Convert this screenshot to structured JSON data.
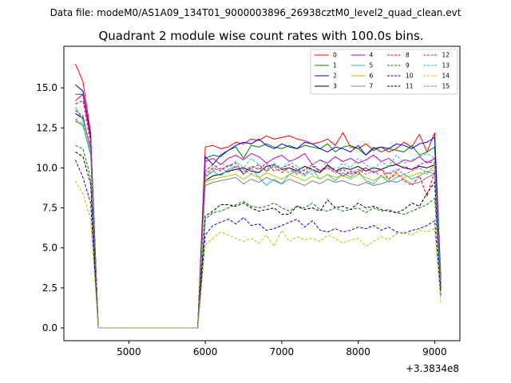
{
  "header": {
    "suptitle": "Data file: modeM0/AS1A09_134T01_9000003896_26938cztM0_level2_quad_clean.evt"
  },
  "chart_data": {
    "type": "line",
    "title": "Quadrant 2 module wise count rates with 100.0s bins.",
    "xlabel": "",
    "ylabel": "",
    "x_offset_label": "+3.3834e8",
    "xlim": [
      4150,
      9330
    ],
    "ylim": [
      -0.8,
      17.6
    ],
    "xticks": [
      5000,
      6000,
      7000,
      8000,
      9000
    ],
    "yticks": [
      0.0,
      2.5,
      5.0,
      7.5,
      10.0,
      12.5,
      15.0
    ],
    "xtick_labels": [
      "5000",
      "6000",
      "7000",
      "8000",
      "9000"
    ],
    "ytick_labels": [
      "0.0",
      "2.5",
      "5.0",
      "7.5",
      "10.0",
      "12.5",
      "15.0"
    ],
    "grid": false,
    "legend": {
      "placement": "top-right",
      "columns": 4
    },
    "x": [
      4300,
      4400,
      4500,
      4600,
      4700,
      4800,
      4900,
      5000,
      5100,
      5200,
      5300,
      5400,
      5500,
      5600,
      5700,
      5800,
      5900,
      6000,
      6100,
      6200,
      6300,
      6400,
      6500,
      6600,
      6700,
      6800,
      6900,
      7000,
      7100,
      7200,
      7300,
      7400,
      7500,
      7600,
      7700,
      7800,
      7900,
      8000,
      8100,
      8200,
      8300,
      8400,
      8500,
      8600,
      8700,
      8800,
      8900,
      9000,
      9080
    ],
    "series": [
      {
        "name": "0",
        "color": "#ff0000",
        "dashed": false,
        "start": [
          16.5,
          15.4,
          12.2
        ],
        "high": [
          11.3,
          11.4,
          11.2,
          11.3,
          11.6,
          11.5,
          11.8,
          11.7,
          12.0,
          11.8,
          11.9,
          12.0,
          11.8,
          11.7,
          11.5,
          11.6,
          11.8,
          11.4,
          12.2,
          11.3,
          11.2,
          11.5,
          11.1,
          11.3,
          11.0,
          11.2,
          11.6,
          11.3,
          12.1,
          11.0,
          12.2
        ],
        "end": 3.2
      },
      {
        "name": "1",
        "color": "#008000",
        "dashed": false,
        "start": [
          14.6,
          14.6,
          11.9
        ],
        "high": [
          10.6,
          10.8,
          10.7,
          11.1,
          11.3,
          10.6,
          11.4,
          11.3,
          11.5,
          11.3,
          11.2,
          11.4,
          11.2,
          11.4,
          11.3,
          11.2,
          11.5,
          11.0,
          11.3,
          11.4,
          11.2,
          10.8,
          11.3,
          11.0,
          11.2,
          11.1,
          11.0,
          11.4,
          10.8,
          11.0,
          11.3
        ],
        "end": 3.0
      },
      {
        "name": "2",
        "color": "#0000ff",
        "dashed": false,
        "start": [
          15.2,
          14.8,
          12.0
        ],
        "high": [
          10.7,
          10.2,
          10.8,
          11.1,
          11.4,
          11.6,
          11.5,
          11.8,
          11.4,
          11.2,
          11.5,
          11.3,
          11.2,
          11.6,
          11.5,
          11.2,
          11.0,
          11.3,
          11.2,
          11.0,
          11.4,
          10.8,
          11.2,
          11.3,
          11.2,
          11.5,
          11.4,
          11.2,
          11.5,
          11.6,
          11.9
        ],
        "end": 3.0
      },
      {
        "name": "3",
        "color": "#000000",
        "dashed": false,
        "start": [
          13.4,
          13.1,
          11.2
        ],
        "high": [
          9.2,
          9.5,
          9.6,
          9.8,
          9.9,
          10.0,
          9.8,
          9.7,
          10.1,
          10.2,
          9.9,
          10.0,
          9.8,
          10.1,
          9.9,
          9.7,
          10.2,
          9.8,
          10.0,
          9.9,
          10.1,
          9.8,
          10.0,
          9.9,
          10.1,
          10.2,
          10.0,
          9.9,
          10.1,
          10.0,
          10.2
        ],
        "end": 2.8
      },
      {
        "name": "4",
        "color": "#bf00bf",
        "dashed": false,
        "start": [
          14.2,
          14.6,
          11.8
        ],
        "high": [
          10.4,
          10.6,
          10.2,
          10.6,
          10.8,
          10.5,
          10.9,
          10.7,
          10.3,
          10.6,
          10.8,
          10.4,
          10.6,
          10.9,
          10.2,
          10.5,
          10.3,
          10.7,
          10.4,
          10.6,
          10.3,
          10.5,
          10.8,
          10.4,
          10.6,
          10.2,
          10.5,
          10.4,
          10.7,
          10.3,
          10.6
        ],
        "end": 2.9
      },
      {
        "name": "5",
        "color": "#20c0c0",
        "dashed": false,
        "start": [
          13.8,
          13.0,
          11.3
        ],
        "high": [
          9.4,
          9.8,
          9.5,
          9.9,
          10.1,
          9.6,
          10.0,
          9.4,
          8.9,
          9.3,
          9.0,
          9.6,
          9.8,
          9.5,
          9.9,
          9.3,
          9.6,
          9.2,
          9.7,
          9.4,
          9.8,
          9.2,
          9.0,
          9.5,
          9.1,
          9.4,
          9.6,
          9.3,
          9.5,
          9.8,
          9.6
        ],
        "end": 2.6
      },
      {
        "name": "6",
        "color": "#bfbf00",
        "dashed": false,
        "start": [
          13.0,
          12.6,
          10.9
        ],
        "high": [
          9.1,
          9.3,
          9.4,
          9.5,
          9.6,
          9.3,
          9.6,
          9.4,
          9.7,
          9.5,
          9.3,
          9.6,
          9.4,
          9.2,
          9.5,
          9.3,
          9.6,
          9.4,
          9.5,
          9.3,
          9.6,
          9.4,
          9.2,
          9.5,
          9.3,
          9.6,
          9.4,
          9.5,
          9.7,
          9.6,
          10.2
        ],
        "end": 2.7
      },
      {
        "name": "7",
        "color": "#808080",
        "dashed": false,
        "start": [
          12.9,
          12.7,
          10.8
        ],
        "high": [
          8.9,
          9.1,
          9.2,
          9.3,
          9.4,
          9.0,
          9.3,
          9.1,
          9.4,
          9.2,
          9.0,
          9.3,
          9.1,
          8.9,
          9.2,
          9.0,
          9.3,
          9.1,
          9.2,
          9.0,
          8.9,
          9.1,
          8.9,
          9.0,
          9.2,
          9.1,
          9.3,
          9.0,
          9.1,
          9.4,
          9.6
        ],
        "end": 2.5
      },
      {
        "name": "8",
        "color": "#ff0000",
        "dashed": true,
        "start": [
          14.0,
          14.2,
          11.5
        ],
        "high": [
          9.8,
          10.2,
          9.9,
          10.1,
          10.3,
          9.6,
          10.0,
          10.2,
          9.8,
          10.1,
          9.7,
          10.0,
          9.6,
          9.9,
          10.2,
          9.8,
          10.1,
          9.9,
          9.5,
          9.8,
          9.6,
          10.0,
          9.7,
          9.9,
          9.3,
          9.7,
          9.2,
          8.9,
          9.5,
          8.2,
          9.8
        ],
        "end": 2.7
      },
      {
        "name": "9",
        "color": "#008000",
        "dashed": true,
        "start": [
          11.4,
          11.2,
          9.4
        ],
        "high": [
          6.8,
          7.2,
          7.3,
          7.5,
          7.7,
          7.9,
          7.6,
          7.5,
          7.6,
          7.8,
          7.5,
          7.3,
          7.6,
          7.5,
          7.8,
          7.4,
          7.3,
          7.5,
          7.3,
          7.4,
          7.5,
          7.2,
          7.5,
          7.3,
          7.4,
          7.2,
          7.1,
          7.3,
          7.5,
          7.7,
          8.1
        ],
        "end": 2.2
      },
      {
        "name": "10",
        "color": "#0000ff",
        "dashed": true,
        "start": [
          10.5,
          9.4,
          7.8
        ],
        "high": [
          5.8,
          6.4,
          6.6,
          6.8,
          6.5,
          6.9,
          6.4,
          6.5,
          6.1,
          6.2,
          6.4,
          6.6,
          6.8,
          6.3,
          6.7,
          6.1,
          6.0,
          6.2,
          6.0,
          6.1,
          6.3,
          6.2,
          6.4,
          6.1,
          6.3,
          6.0,
          5.9,
          6.1,
          6.2,
          6.4,
          6.7
        ],
        "end": 2.0
      },
      {
        "name": "11",
        "color": "#000000",
        "dashed": true,
        "start": [
          11.0,
          10.7,
          9.0
        ],
        "high": [
          7.0,
          7.3,
          7.7,
          7.7,
          7.6,
          7.8,
          7.5,
          7.3,
          7.4,
          7.5,
          7.1,
          7.1,
          7.6,
          7.4,
          7.5,
          7.3,
          8.0,
          7.5,
          7.6,
          7.4,
          7.8,
          7.5,
          7.6,
          7.4,
          7.3,
          7.2,
          7.4,
          7.8,
          7.6,
          8.4,
          9.1
        ],
        "end": 2.4
      },
      {
        "name": "12",
        "color": "#bf00bf",
        "dashed": true,
        "start": [
          13.6,
          13.2,
          11.2
        ],
        "high": [
          9.6,
          10.0,
          9.8,
          10.2,
          10.0,
          9.7,
          10.1,
          9.9,
          10.3,
          9.8,
          10.0,
          10.2,
          9.9,
          9.6,
          10.1,
          9.8,
          10.0,
          9.7,
          9.9,
          9.6,
          9.8,
          10.0,
          9.7,
          9.9,
          9.6,
          9.8,
          10.1,
          9.9,
          10.2,
          10.4,
          10.3
        ],
        "end": 2.8
      },
      {
        "name": "13",
        "color": "#20c0c0",
        "dashed": true,
        "start": [
          13.0,
          12.8,
          10.9
        ],
        "high": [
          9.4,
          9.9,
          10.3,
          10.1,
          10.4,
          10.0,
          10.6,
          10.2,
          9.9,
          10.3,
          10.0,
          10.4,
          10.1,
          9.8,
          10.2,
          10.5,
          10.1,
          9.8,
          10.3,
          10.0,
          10.6,
          10.2,
          9.9,
          10.4,
          10.1,
          10.8,
          10.3,
          10.5,
          10.7,
          10.9,
          10.6
        ],
        "end": 2.9
      },
      {
        "name": "14",
        "color": "#bfbf00",
        "dashed": true,
        "start": [
          9.2,
          8.4,
          6.8
        ],
        "high": [
          5.2,
          5.6,
          6.0,
          5.8,
          5.6,
          5.4,
          5.6,
          5.3,
          5.8,
          5.1,
          6.1,
          5.4,
          5.7,
          5.5,
          5.6,
          5.4,
          5.8,
          5.6,
          5.3,
          5.5,
          5.6,
          5.1,
          5.4,
          5.7,
          5.5,
          5.9,
          6.0,
          5.8,
          6.1,
          6.0,
          6.2
        ],
        "end": 1.6
      },
      {
        "name": "15",
        "color": "#808080",
        "dashed": true,
        "start": [
          13.0,
          13.3,
          11.1
        ],
        "high": [
          9.5,
          9.8,
          10.0,
          9.7,
          10.1,
          9.9,
          9.6,
          10.0,
          9.8,
          10.2,
          9.9,
          9.7,
          10.0,
          9.8,
          9.6,
          9.9,
          10.1,
          9.8,
          9.5,
          9.7,
          9.9,
          9.6,
          9.8,
          9.5,
          9.7,
          9.9,
          9.6,
          9.8,
          10.0,
          9.7,
          9.9
        ],
        "end": 2.6
      }
    ]
  }
}
